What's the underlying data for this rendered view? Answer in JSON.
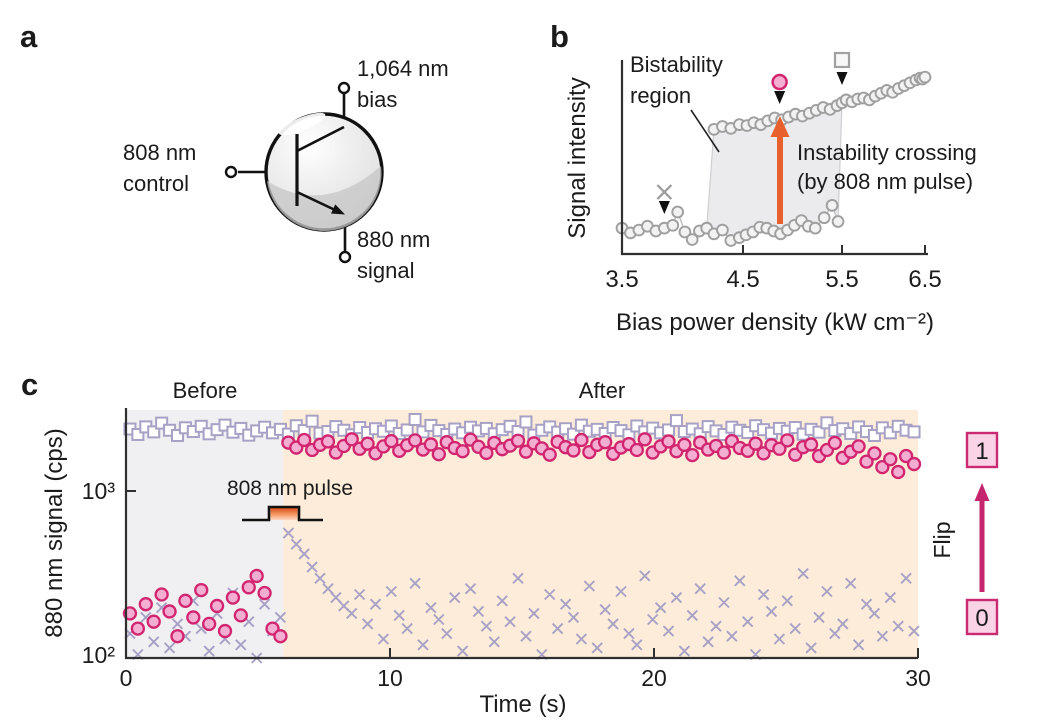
{
  "figure_labels": {
    "a": "a",
    "b": "b",
    "c": "c"
  },
  "colors": {
    "magenta": "#d2256f",
    "pink_fill": "#f4aed2",
    "lavender": "#a8a1c6",
    "gray_marker": "#9f9f9f",
    "gray_marker_fill": "#f2f2f2",
    "gray_line": "#c2c2c2",
    "shade_region": "#ebebee",
    "orange": "#e8602c",
    "peach_bg": "#fcecd9",
    "gray_bg": "#f0eff1",
    "pink_box_fill": "#fbd3e6",
    "axis": "#2f2f2f",
    "black": "#1b1b1b"
  },
  "panel_a": {
    "bias_line1": "1,064 nm",
    "bias_line2": "bias",
    "control_line1": "808 nm",
    "control_line2": "control",
    "signal_line1": "880 nm",
    "signal_line2": "signal"
  },
  "chart_data": [
    {
      "panel": "b",
      "type": "scatter",
      "title": "",
      "xlabel": "Bias power density (kW cm⁻²)",
      "ylabel": "Signal intensity",
      "x_ticks": [
        3.5,
        4.5,
        5.5,
        6.5
      ],
      "x_tick_labels": [
        "3.5",
        "4.5",
        "5.5",
        "6.5"
      ],
      "xlim": [
        3.5,
        6.5
      ],
      "y_units": "normalized intensity (a.u.), no y ticks shown",
      "annotations": {
        "bistability_line1": "Bistability",
        "bistability_line2": "region",
        "instability_line1": "Instability crossing",
        "instability_line2": "(by 808 nm pulse)"
      },
      "bistability_region": {
        "x_left": 4.26,
        "x_right": 5.46
      },
      "series": [
        {
          "name": "lower-branch-forward-sweep",
          "marker": "circle",
          "points": [
            [
              3.5,
              0.115
            ],
            [
              3.57,
              0.09
            ],
            [
              3.64,
              0.105
            ],
            [
              3.71,
              0.125
            ],
            [
              3.78,
              0.1
            ],
            [
              3.85,
              0.115
            ],
            [
              3.92,
              0.13
            ],
            [
              3.96,
              0.2
            ],
            [
              4.02,
              0.095
            ],
            [
              4.08,
              0.055
            ],
            [
              4.14,
              0.1
            ],
            [
              4.2,
              0.115
            ],
            [
              4.26,
              0.085
            ],
            [
              4.33,
              0.105
            ],
            [
              4.4,
              0.05
            ],
            [
              4.47,
              0.065
            ],
            [
              4.53,
              0.08
            ],
            [
              4.6,
              0.095
            ],
            [
              4.67,
              0.12
            ],
            [
              4.74,
              0.115
            ],
            [
              4.81,
              0.1
            ],
            [
              4.88,
              0.085
            ],
            [
              4.95,
              0.105
            ],
            [
              5.02,
              0.13
            ],
            [
              5.09,
              0.155
            ],
            [
              5.16,
              0.125
            ],
            [
              5.23,
              0.115
            ],
            [
              5.32,
              0.17
            ],
            [
              5.4,
              0.235
            ],
            [
              5.46,
              0.15
            ]
          ]
        },
        {
          "name": "upper-branch-backward-sweep",
          "marker": "circle",
          "points": [
            [
              4.26,
              0.635
            ],
            [
              4.33,
              0.65
            ],
            [
              4.4,
              0.64
            ],
            [
              4.47,
              0.66
            ],
            [
              4.54,
              0.655
            ],
            [
              4.61,
              0.67
            ],
            [
              4.68,
              0.66
            ],
            [
              4.75,
              0.68
            ],
            [
              4.82,
              0.695
            ],
            [
              4.89,
              0.685
            ],
            [
              4.96,
              0.7
            ],
            [
              5.03,
              0.715
            ],
            [
              5.1,
              0.705
            ],
            [
              5.17,
              0.72
            ],
            [
              5.24,
              0.735
            ],
            [
              5.31,
              0.75
            ],
            [
              5.38,
              0.74
            ],
            [
              5.45,
              0.76
            ],
            [
              5.5,
              0.775
            ],
            [
              5.55,
              0.79
            ],
            [
              5.62,
              0.78
            ],
            [
              5.69,
              0.795
            ],
            [
              5.76,
              0.8
            ],
            [
              5.83,
              0.79
            ],
            [
              5.9,
              0.81
            ],
            [
              5.97,
              0.825
            ],
            [
              6.04,
              0.84
            ],
            [
              6.11,
              0.83
            ],
            [
              6.18,
              0.85
            ],
            [
              6.25,
              0.865
            ],
            [
              6.32,
              0.88
            ],
            [
              6.39,
              0.895
            ],
            [
              6.44,
              0.905
            ],
            [
              6.47,
              0.9
            ],
            [
              6.5,
              0.91
            ]
          ]
        }
      ],
      "markers": [
        {
          "symbol": "cross",
          "x": 3.85,
          "y": 0.305
        },
        {
          "symbol": "circle",
          "x": 4.87,
          "y": 0.884
        },
        {
          "symbol": "square",
          "x": 5.5,
          "y": 1.0
        }
      ]
    },
    {
      "panel": "c",
      "type": "scatter",
      "xlabel": "Time (s)",
      "ylabel": "880 nm signal (cps)",
      "x_ticks": [
        0,
        10,
        20,
        30
      ],
      "x_tick_labels": [
        "0",
        "10",
        "20",
        "30"
      ],
      "y_ticks": [
        1000,
        100
      ],
      "y_tick_labels": [
        "10³",
        "10²"
      ],
      "ylog": true,
      "ylim": [
        100,
        3100
      ],
      "xlim": [
        0,
        30
      ],
      "before_label": "Before",
      "after_label": "After",
      "pulse_label": "808 nm pulse",
      "before_end_t": 5.95,
      "flip": {
        "one": "1",
        "zero": "0",
        "label": "Flip"
      },
      "t_start": 0.15,
      "t_step": 0.3,
      "series": [
        {
          "name": "squares",
          "marker": "square",
          "values": [
            2350,
            2180,
            2420,
            2260,
            2550,
            2310,
            2150,
            2390,
            2270,
            2440,
            2200,
            2330,
            2480,
            2250,
            2370,
            2160,
            2290,
            2410,
            2230,
            2340,
            2190,
            2460,
            2300,
            2620,
            2220,
            2270,
            2430,
            2310,
            2170,
            2400,
            2240,
            2360,
            2280,
            2450,
            2210,
            2320,
            2680,
            2260,
            2470,
            2300,
            2180,
            2350,
            2230,
            2410,
            2290,
            2370,
            2200,
            2330,
            2440,
            2270,
            2590,
            2160,
            2310,
            2420,
            2250,
            2360,
            2190,
            2480,
            2280,
            2340,
            2210,
            2400,
            2300,
            2170,
            2450,
            2260,
            2380,
            2230,
            2320,
            2640,
            2270,
            2350,
            2200,
            2430,
            2290,
            2180,
            2410,
            2310,
            2240,
            2460,
            2330,
            2220,
            2370,
            2280,
            2400,
            2190,
            2340,
            2250,
            2560,
            2300,
            2360,
            2210,
            2420,
            2270,
            2150,
            2390,
            2230,
            2440,
            2310,
            2260
          ]
        },
        {
          "name": "crosses",
          "marker": "cross",
          "values": [
            140,
            105,
            175,
            125,
            200,
            115,
            160,
            135,
            220,
            150,
            110,
            185,
            130,
            245,
            120,
            165,
            100,
            210,
            145,
            175,
            560,
            480,
            420,
            350,
            300,
            260,
            230,
            205,
            185,
            240,
            160,
            210,
            130,
            250,
            180,
            150,
            280,
            120,
            200,
            170,
            140,
            230,
            110,
            260,
            190,
            155,
            125,
            220,
            165,
            300,
            135,
            185,
            105,
            240,
            150,
            210,
            175,
            130,
            270,
            115,
            195,
            160,
            250,
            140,
            120,
            310,
            170,
            200,
            145,
            230,
            110,
            180,
            260,
            125,
            155,
            215,
            135,
            290,
            165,
            105,
            240,
            190,
            130,
            220,
            150,
            320,
            115,
            175,
            250,
            140,
            160,
            280,
            120,
            210,
            185,
            135,
            230,
            155,
            300,
            145
          ]
        },
        {
          "name": "circles",
          "marker": "circle",
          "values": [
            185,
            150,
            210,
            165,
            240,
            190,
            135,
            220,
            175,
            255,
            160,
            205,
            145,
            230,
            180,
            265,
            310,
            245,
            150,
            135,
            1950,
            1820,
            2020,
            1760,
            1890,
            1980,
            1700,
            1860,
            2040,
            1790,
            1920,
            1680,
            1850,
            1990,
            1740,
            1880,
            2010,
            1770,
            1900,
            1660,
            1960,
            1810,
            1730,
            2030,
            1840,
            1690,
            1940,
            1780,
            1870,
            2000,
            1720,
            1930,
            1800,
            1650,
            1970,
            1830,
            1750,
            2020,
            1710,
            1890,
            1960,
            1670,
            1820,
            1910,
            1760,
            2040,
            1700,
            1850,
            1980,
            1730,
            1890,
            1640,
            1950,
            1770,
            1860,
            1700,
            1990,
            1810,
            1740,
            1920,
            1680,
            1880,
            1790,
            2010,
            1650,
            1830,
            1900,
            1620,
            1760,
            1940,
            1580,
            1720,
            1850,
            1500,
            1680,
            1390,
            1550,
            1300,
            1620,
            1450
          ]
        }
      ]
    }
  ]
}
